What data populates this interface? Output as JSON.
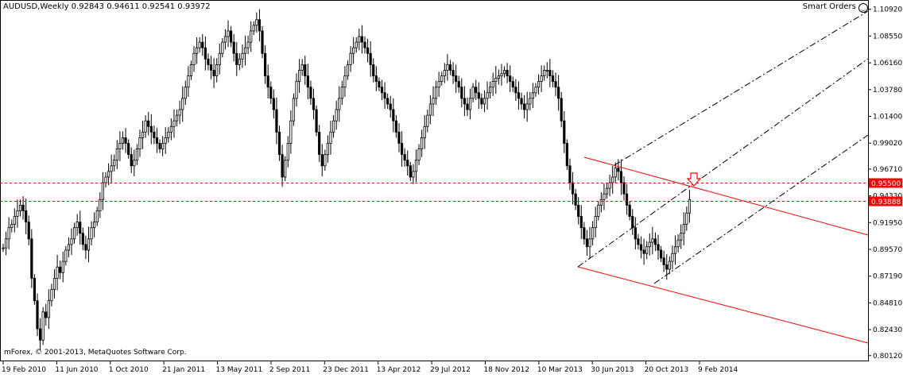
{
  "header": {
    "symbol_info": "AUDUSD,Weekly  0.92843 0.94611 0.92541 0.93972",
    "smart_orders_label": "Smart Orders",
    "smart_icon": "smiley-icon"
  },
  "footer": {
    "copyright": "mForex, © 2001-2013, MetaQuotes Software Corp."
  },
  "colors": {
    "background": "#ffffff",
    "candles": "#000000",
    "levels": "#ff0000",
    "channel_red": "#ff0000",
    "channel_black": "#000000",
    "badge_bg": "#ff0000",
    "badge_text": "#ffffff"
  },
  "chart_data": {
    "type": "candlestick",
    "symbol": "AUDUSD",
    "timeframe": "Weekly",
    "ohlc_current": {
      "open": 0.92843,
      "high": 0.94611,
      "low": 0.92541,
      "close": 0.93972
    },
    "ylim": [
      0.7968,
      1.1175
    ],
    "y_ticks": [
      "1.10920",
      "1.08550",
      "1.06160",
      "1.03780",
      "1.01400",
      "0.99020",
      "0.96710",
      "0.94330",
      "0.91950",
      "0.89570",
      "0.87190",
      "0.84810",
      "0.82430",
      "0.80120"
    ],
    "x_ticks": [
      "19 Feb 2010",
      "11 Jun 2010",
      "1 Oct 2010",
      "21 Jan 2011",
      "13 May 2011",
      "2 Sep 2011",
      "23 Dec 2011",
      "13 Apr 2012",
      "29 Jul 2012",
      "18 Nov 2012",
      "10 Mar 2013",
      "30 Jun 2013",
      "20 Oct 2013",
      "9 Feb 2014"
    ],
    "horizontal_levels": [
      {
        "price": 0.955,
        "label": "0.95500"
      },
      {
        "price": 0.93888,
        "label": "0.93888"
      }
    ],
    "closes": [
      0.897,
      0.905,
      0.915,
      0.918,
      0.925,
      0.93,
      0.935,
      0.93,
      0.92,
      0.905,
      0.87,
      0.85,
      0.825,
      0.815,
      0.84,
      0.835,
      0.85,
      0.86,
      0.87,
      0.88,
      0.875,
      0.885,
      0.895,
      0.9,
      0.905,
      0.915,
      0.92,
      0.91,
      0.9,
      0.895,
      0.905,
      0.915,
      0.92,
      0.93,
      0.94,
      0.955,
      0.96,
      0.965,
      0.97,
      0.975,
      0.985,
      0.99,
      0.995,
      0.99,
      0.98,
      0.97,
      0.975,
      0.985,
      0.995,
      1.0,
      1.01,
      1.005,
      1.0,
      0.995,
      0.99,
      0.985,
      0.99,
      0.995,
      1.0,
      1.005,
      1.01,
      1.015,
      1.02,
      1.03,
      1.04,
      1.05,
      1.06,
      1.07,
      1.075,
      1.08,
      1.075,
      1.065,
      1.06,
      1.055,
      1.05,
      1.06,
      1.07,
      1.08,
      1.085,
      1.09,
      1.08,
      1.07,
      1.06,
      1.065,
      1.07,
      1.075,
      1.08,
      1.09,
      1.095,
      1.1,
      1.09,
      1.07,
      1.05,
      1.04,
      1.03,
      1.02,
      1.0,
      0.98,
      0.96,
      0.975,
      0.99,
      1.01,
      1.03,
      1.045,
      1.055,
      1.06,
      1.05,
      1.04,
      1.03,
      1.02,
      1.0,
      0.98,
      0.97,
      0.98,
      0.99,
      1.0,
      1.01,
      1.02,
      1.03,
      1.04,
      1.05,
      1.06,
      1.07,
      1.075,
      1.08,
      1.085,
      1.08,
      1.075,
      1.07,
      1.06,
      1.05,
      1.045,
      1.04,
      1.035,
      1.03,
      1.025,
      1.02,
      1.01,
      1.0,
      0.99,
      0.98,
      0.975,
      0.97,
      0.96,
      0.965,
      0.975,
      0.985,
      0.995,
      1.005,
      1.015,
      1.025,
      1.03,
      1.04,
      1.045,
      1.05,
      1.055,
      1.06,
      1.055,
      1.05,
      1.045,
      1.04,
      1.03,
      1.025,
      1.02,
      1.03,
      1.04,
      1.035,
      1.03,
      1.025,
      1.03,
      1.035,
      1.04,
      1.045,
      1.048,
      1.05,
      1.052,
      1.055,
      1.05,
      1.045,
      1.04,
      1.035,
      1.03,
      1.025,
      1.02,
      1.025,
      1.03,
      1.035,
      1.04,
      1.045,
      1.05,
      1.055,
      1.055,
      1.05,
      1.045,
      1.04,
      1.03,
      1.01,
      0.99,
      0.97,
      0.955,
      0.945,
      0.935,
      0.925,
      0.915,
      0.905,
      0.898,
      0.905,
      0.915,
      0.925,
      0.935,
      0.94,
      0.945,
      0.95,
      0.955,
      0.96,
      0.968,
      0.965,
      0.955,
      0.945,
      0.935,
      0.925,
      0.915,
      0.905,
      0.9,
      0.895,
      0.892,
      0.898,
      0.902,
      0.905,
      0.9,
      0.895,
      0.888,
      0.882,
      0.878,
      0.885,
      0.892,
      0.898,
      0.904,
      0.91,
      0.918,
      0.928,
      0.94
    ]
  }
}
